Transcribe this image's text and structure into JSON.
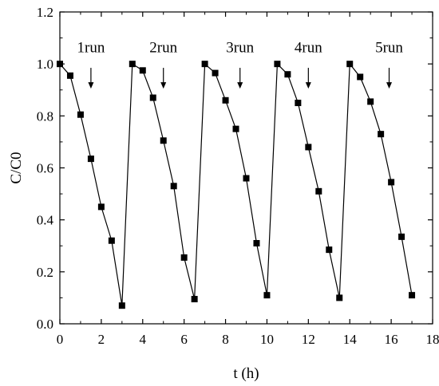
{
  "chart_data": {
    "type": "line",
    "xlabel": "t (h)",
    "ylabel": "C/C0",
    "xlim": [
      0,
      18
    ],
    "ylim": [
      0,
      1.2
    ],
    "xticks": [
      "0",
      "2",
      "4",
      "6",
      "8",
      "10",
      "12",
      "14",
      "16",
      "18"
    ],
    "yticks": [
      "0.0",
      "0.2",
      "0.4",
      "0.6",
      "0.8",
      "1.0",
      "1.2"
    ],
    "grid": false,
    "marker": "square",
    "series": [
      {
        "x": [
          0,
          0.5,
          1.0,
          1.5,
          2.0,
          2.5,
          3.0
        ],
        "y": [
          1.0,
          0.955,
          0.805,
          0.635,
          0.45,
          0.32,
          0.07
        ]
      },
      {
        "x": [
          3.5,
          4.0,
          4.5,
          5.0,
          5.5,
          6.0,
          6.5
        ],
        "y": [
          1.0,
          0.975,
          0.87,
          0.705,
          0.53,
          0.255,
          0.095
        ]
      },
      {
        "x": [
          7.0,
          7.5,
          8.0,
          8.5,
          9.0,
          9.5,
          10.0
        ],
        "y": [
          1.0,
          0.965,
          0.86,
          0.75,
          0.56,
          0.31,
          0.11
        ]
      },
      {
        "x": [
          10.5,
          11.0,
          11.5,
          12.0,
          12.5,
          13.0,
          13.5
        ],
        "y": [
          1.0,
          0.96,
          0.85,
          0.68,
          0.51,
          0.285,
          0.1
        ]
      },
      {
        "x": [
          14.0,
          14.5,
          15.0,
          15.5,
          16.0,
          16.5,
          17.0
        ],
        "y": [
          1.0,
          0.95,
          0.855,
          0.73,
          0.545,
          0.335,
          0.11
        ]
      }
    ],
    "annotations": [
      {
        "label": "1run",
        "x": 1.5,
        "y_tip": 0.905
      },
      {
        "label": "2run",
        "x": 5.0,
        "y_tip": 0.905
      },
      {
        "label": "3run",
        "x": 8.7,
        "y_tip": 0.905
      },
      {
        "label": "4run",
        "x": 12.0,
        "y_tip": 0.905
      },
      {
        "label": "5run",
        "x": 15.9,
        "y_tip": 0.905
      }
    ]
  }
}
